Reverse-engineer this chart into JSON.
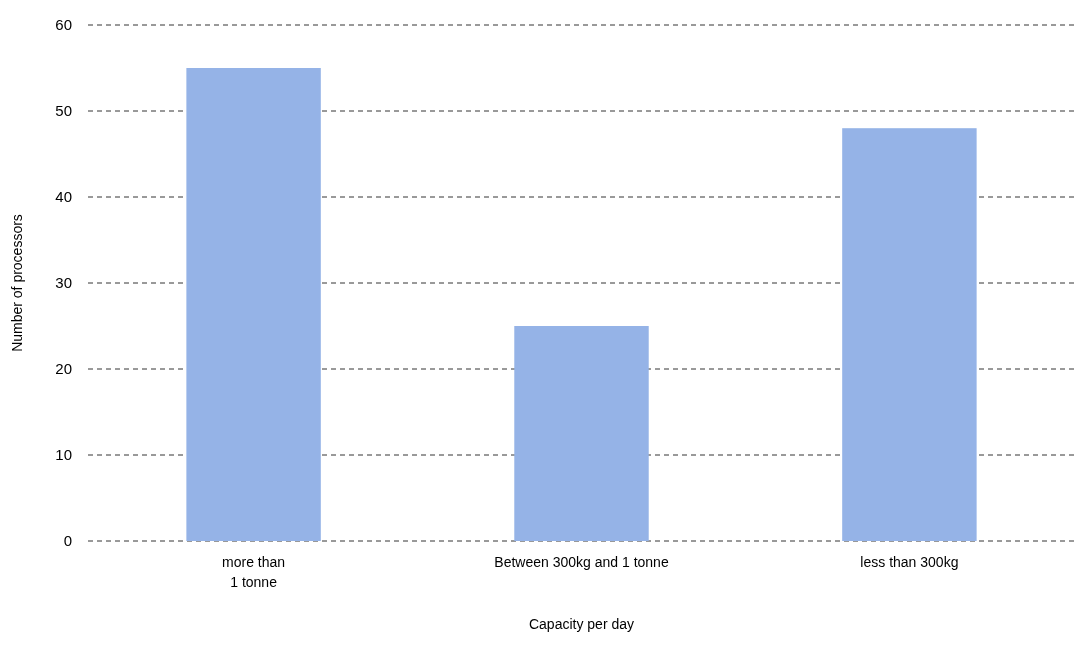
{
  "chart_data": {
    "type": "bar",
    "xlabel": "Capacity per day",
    "ylabel": "Number of processors",
    "categories": [
      "more than\n1 tonne",
      "Between 300kg and 1 tonne",
      "less than 300kg"
    ],
    "values": [
      55,
      25,
      48
    ],
    "color": "#95b3e7",
    "ylim": [
      0,
      60
    ],
    "yticks": [
      0,
      10,
      20,
      30,
      40,
      50,
      60
    ],
    "grid": "y",
    "line_style": "dashed"
  }
}
